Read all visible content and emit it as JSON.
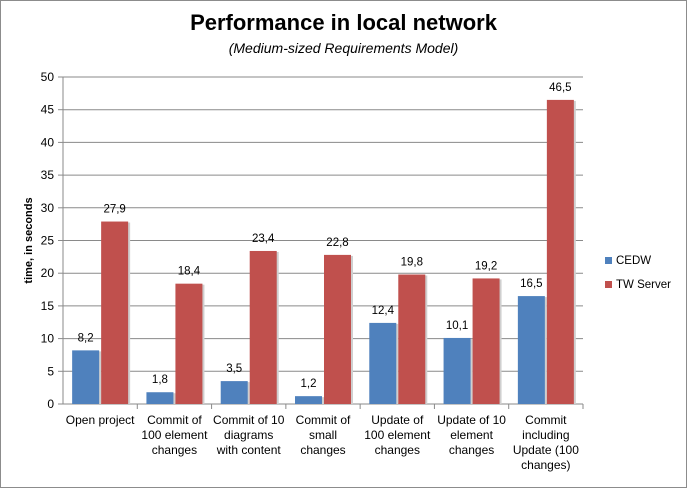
{
  "chart_data": {
    "type": "bar",
    "title": "Performance in local network",
    "subtitle": "(Medium-sized Requirements Model)",
    "xlabel": "",
    "ylabel": "time, in seconds",
    "ylim": [
      0,
      50
    ],
    "yticks": [
      0,
      5,
      10,
      15,
      20,
      25,
      30,
      35,
      40,
      45,
      50
    ],
    "grid": true,
    "legend_position": "right",
    "categories": [
      [
        "Open project"
      ],
      [
        "Commit of",
        "100 element",
        "changes"
      ],
      [
        "Commit of 10",
        "diagrams",
        "with content"
      ],
      [
        "Commit of",
        "small",
        "changes"
      ],
      [
        "Update of",
        "100 element",
        "changes"
      ],
      [
        "Update of 10",
        "element",
        "changes"
      ],
      [
        "Commit",
        "including",
        "Update (100",
        "changes)"
      ]
    ],
    "series": [
      {
        "name": "CEDW",
        "color": "#4f81bd",
        "values": [
          8.2,
          1.8,
          3.5,
          1.2,
          12.4,
          10.1,
          16.5
        ],
        "labels": [
          "8,2",
          "1,8",
          "3,5",
          "1,2",
          "12,4",
          "10,1",
          "16,5"
        ]
      },
      {
        "name": "TW Server",
        "color": "#c0504d",
        "values": [
          27.9,
          18.4,
          23.4,
          22.8,
          19.8,
          19.2,
          46.5
        ],
        "labels": [
          "27,9",
          "18,4",
          "23,4",
          "22,8",
          "19,8",
          "19,2",
          "46,5"
        ]
      }
    ]
  }
}
